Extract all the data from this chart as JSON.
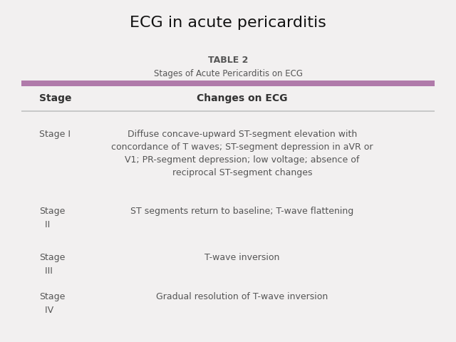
{
  "title": "ECG in acute pericarditis",
  "title_fontsize": 16,
  "table_title_line1": "TABLE 2",
  "table_title_line2": "Stages of Acute Pericarditis on ECG",
  "header_stage": "Stage",
  "header_changes": "Changes on ECG",
  "purple_bar_color": "#b07aaa",
  "bg_color": "#f2f0f0",
  "header_divider_color": "#c8c8c8",
  "rows": [
    {
      "stage": "Stage I",
      "stage_line2": "",
      "changes": "Diffuse concave-upward ST-segment elevation with\nconcordance of T waves; ST-segment depression in aVR or\nV1; PR-segment depression; low voltage; absence of\nreciprocal ST-segment changes"
    },
    {
      "stage": "Stage\n  II",
      "stage_line2": "",
      "changes": "ST segments return to baseline; T-wave flattening"
    },
    {
      "stage": "Stage\n  III",
      "stage_line2": "",
      "changes": "T-wave inversion"
    },
    {
      "stage": "Stage\n  IV",
      "stage_line2": "",
      "changes": "Gradual resolution of T-wave inversion"
    }
  ],
  "text_color": "#555555",
  "body_fontsize": 9,
  "header_fontsize": 10,
  "table_title_fontsize": 9,
  "table_subtitle_fontsize": 8.5
}
